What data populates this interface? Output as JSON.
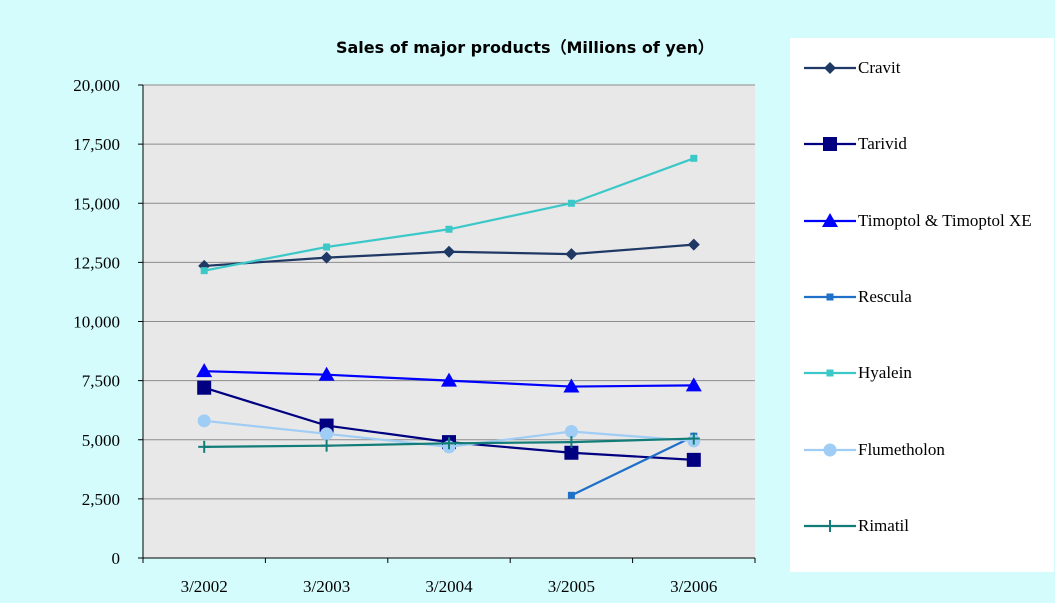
{
  "chart_data": {
    "type": "line",
    "title": "Sales of major products（Millions of yen）",
    "categories": [
      "3/2002",
      "3/2003",
      "3/2004",
      "3/2005",
      "3/2006"
    ],
    "yticks": [
      "0",
      "2,500",
      "5,000",
      "7,500",
      "10,000",
      "12,500",
      "15,000",
      "17,500",
      "20,000"
    ],
    "ylim": [
      0,
      20000
    ],
    "grid": true,
    "legend_position": "right",
    "series": [
      {
        "name": "Cravit",
        "values": [
          12350,
          12700,
          12950,
          12850,
          13250
        ],
        "color": "#1f3864",
        "marker": "diamond"
      },
      {
        "name": "Tarivid",
        "values": [
          7200,
          5600,
          4900,
          4450,
          4150
        ],
        "color": "#000080",
        "marker": "square"
      },
      {
        "name": "Timoptol & Timoptol XE",
        "values": [
          7900,
          7750,
          7500,
          7250,
          7300
        ],
        "color": "#0000ff",
        "marker": "triangle"
      },
      {
        "name": "Rescula",
        "values": [
          null,
          null,
          null,
          2650,
          5150
        ],
        "color": "#1e70c8",
        "marker": "smallsquare"
      },
      {
        "name": "Hyalein",
        "values": [
          12150,
          13150,
          13900,
          15000,
          16900
        ],
        "color": "#3cc8c8",
        "marker": "smallsquare"
      },
      {
        "name": "Flumetholon",
        "values": [
          5800,
          5250,
          4700,
          5350,
          4950
        ],
        "color": "#a0cdf5",
        "marker": "circle"
      },
      {
        "name": "Rimatil",
        "values": [
          4700,
          4750,
          4850,
          4900,
          5050
        ],
        "color": "#127d78",
        "marker": "plus"
      }
    ]
  }
}
